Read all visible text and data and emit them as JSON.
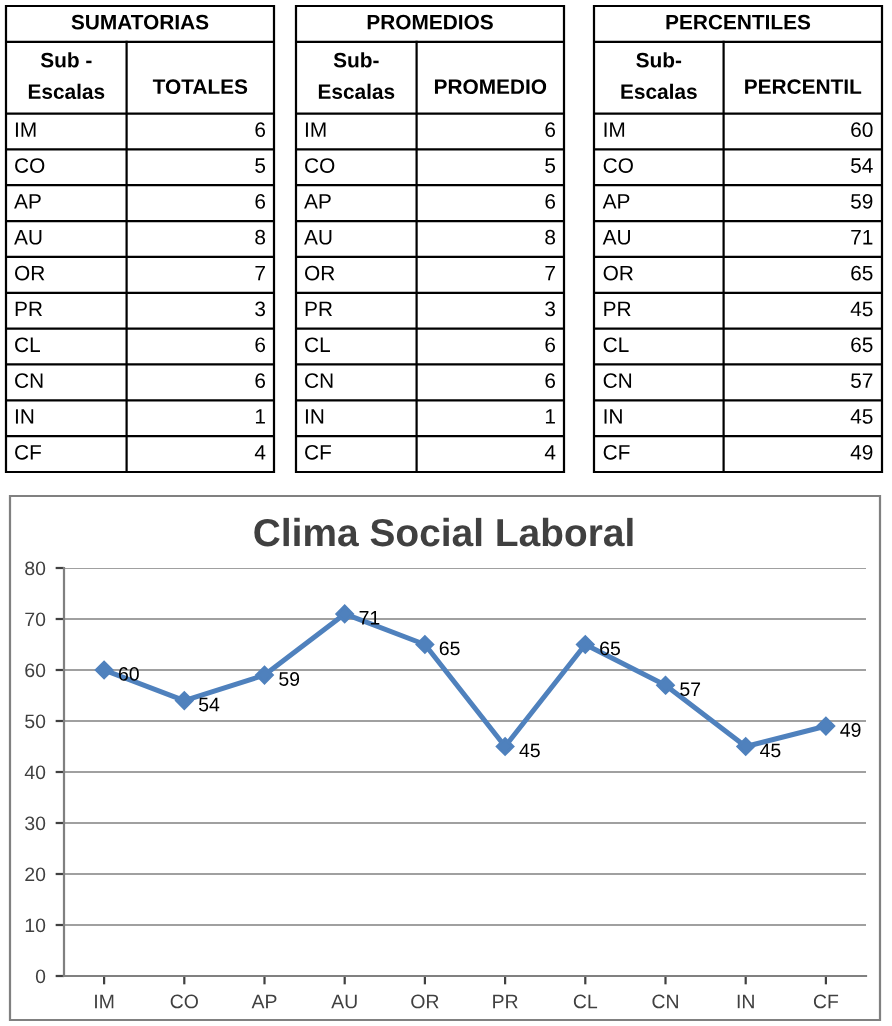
{
  "chart_data": [
    {
      "type": "other",
      "title": "SUMATORIAS",
      "annotations": [
        "Sub -\nEscalas",
        "TOTALES"
      ],
      "data_labels": true,
      "categories": [
        "IM",
        "CO",
        "AP",
        "AU",
        "OR",
        "PR",
        "CL",
        "CN",
        "IN",
        "CF"
      ],
      "values": [
        6,
        5,
        6,
        8,
        7,
        3,
        6,
        6,
        1,
        4
      ]
    },
    {
      "type": "other",
      "title": "PROMEDIOS",
      "annotations": [
        "Sub-\nEscalas",
        "PROMEDIO"
      ],
      "data_labels": true,
      "categories": [
        "IM",
        "CO",
        "AP",
        "AU",
        "OR",
        "PR",
        "CL",
        "CN",
        "IN",
        "CF"
      ],
      "values": [
        6,
        5,
        6,
        8,
        7,
        3,
        6,
        6,
        1,
        4
      ]
    },
    {
      "type": "other",
      "title": "PERCENTILES",
      "annotations": [
        "Sub-\nEscalas",
        "PERCENTIL"
      ],
      "data_labels": true,
      "categories": [
        "IM",
        "CO",
        "AP",
        "AU",
        "OR",
        "PR",
        "CL",
        "CN",
        "IN",
        "CF"
      ],
      "values": [
        60,
        54,
        59,
        71,
        65,
        45,
        65,
        57,
        45,
        49
      ]
    },
    {
      "type": "line",
      "title": "Clima Social Laboral",
      "categories": [
        "IM",
        "CO",
        "AP",
        "AU",
        "OR",
        "PR",
        "CL",
        "CN",
        "IN",
        "CF"
      ],
      "series": [
        {
          "color": "#4f81bd",
          "values": [
            60,
            54,
            59,
            71,
            65,
            45,
            65,
            57,
            45,
            49
          ]
        }
      ],
      "ylim": [
        0,
        80
      ],
      "yticks": [
        0,
        10,
        20,
        30,
        40,
        50,
        60,
        70,
        80
      ],
      "grid": "y",
      "marker": "diamond",
      "line_style": "solid",
      "data_labels": true
    }
  ]
}
